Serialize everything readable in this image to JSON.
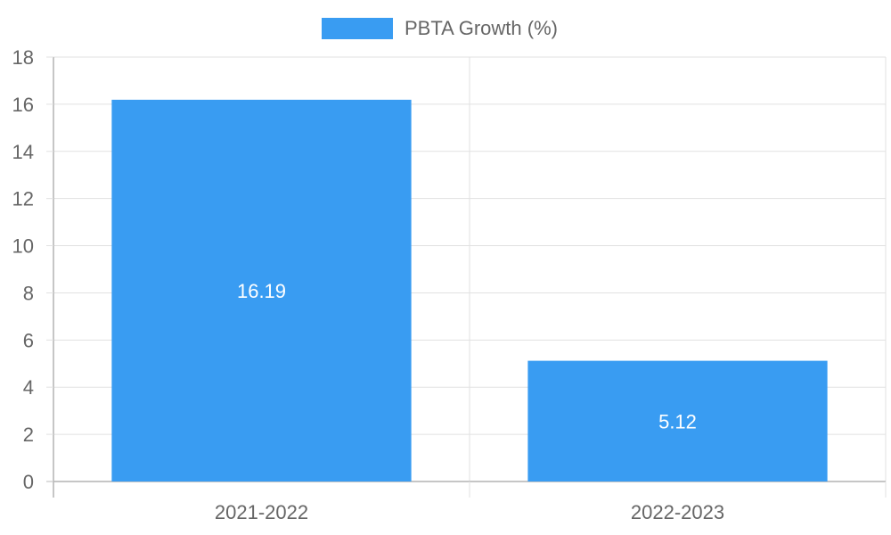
{
  "chart_data": {
    "type": "bar",
    "categories": [
      "2021-2022",
      "2022-2023"
    ],
    "series": [
      {
        "name": "PBTA Growth (%)",
        "values": [
          16.19,
          5.12
        ],
        "color": "#399cf2"
      }
    ],
    "data_labels": [
      "16.19",
      "5.12"
    ],
    "yticks": [
      0,
      2,
      4,
      6,
      8,
      10,
      12,
      14,
      16,
      18
    ],
    "ylim": [
      0,
      18
    ],
    "grid": true,
    "legend": "top-center",
    "colors": {
      "grid": "#e1e1e1",
      "axis": "#b3b3b3",
      "tick_text": "#666666",
      "bar_label": "#ffffff"
    }
  }
}
